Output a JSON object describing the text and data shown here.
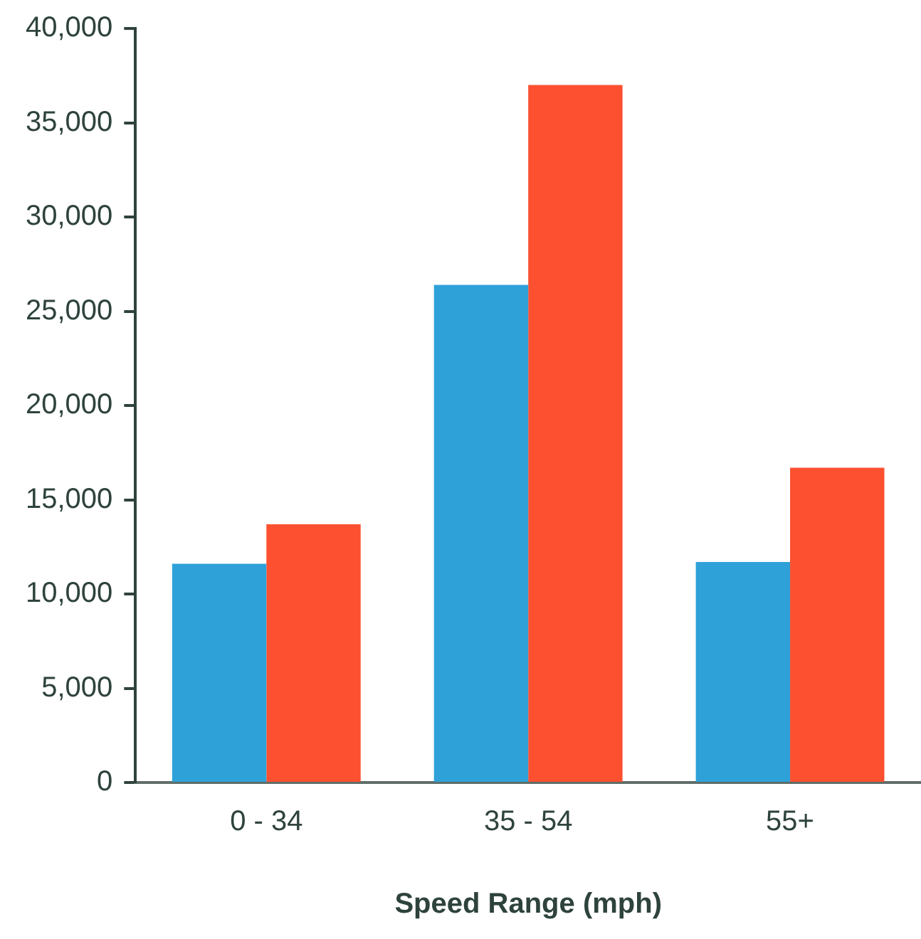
{
  "chart_data": {
    "type": "bar",
    "xlabel": "Speed Range (mph)",
    "categories": [
      "0 - 34",
      "35 - 54",
      "55+"
    ],
    "series": [
      {
        "color": "#2fa1d9",
        "values": [
          11600,
          26400,
          11700
        ]
      },
      {
        "color": "#fd5030",
        "values": [
          13700,
          37000,
          16700
        ]
      }
    ],
    "ylim": [
      0,
      40000
    ],
    "yticks": [
      {
        "value": 0,
        "label": "0"
      },
      {
        "value": 5000,
        "label": "5,000"
      },
      {
        "value": 10000,
        "label": "10,000"
      },
      {
        "value": 15000,
        "label": "15,000"
      },
      {
        "value": 20000,
        "label": "20,000"
      },
      {
        "value": 25000,
        "label": "25,000"
      },
      {
        "value": 30000,
        "label": "30,000"
      },
      {
        "value": 35000,
        "label": "35,000"
      },
      {
        "value": 40000,
        "label": "40,000"
      }
    ],
    "grid": false,
    "legend": false
  }
}
